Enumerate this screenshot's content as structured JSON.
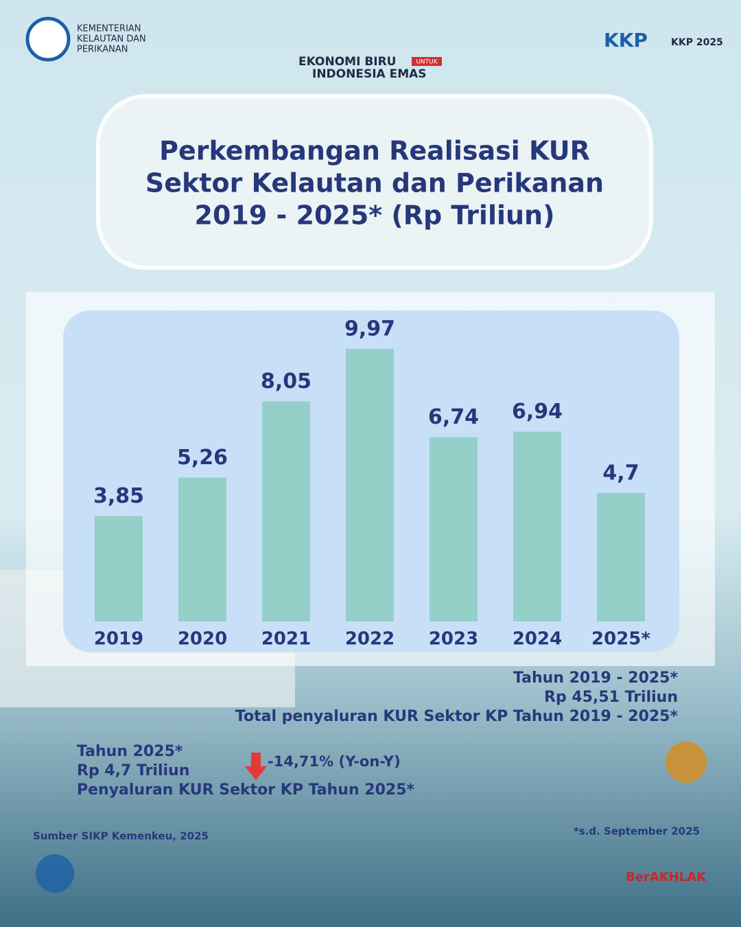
{
  "header": {
    "ministry": [
      "KEMENTERIAN",
      "KELAUTAN DAN",
      "PERIKANAN"
    ],
    "tagline_top": "EKONOMI BIRU",
    "tagline_small": "UNTUK",
    "tagline_bottom": "INDONESIA EMAS",
    "logo_right": "KKP",
    "logo_right2": "KKP 2025"
  },
  "chart_data": {
    "type": "bar",
    "title": [
      "Perkembangan Realisasi KUR",
      "Sektor Kelautan dan Perikanan",
      "2019 - 2025* (Rp Triliun)"
    ],
    "categories": [
      "2019",
      "2020",
      "2021",
      "2022",
      "2023",
      "2024",
      "2025*"
    ],
    "values": [
      3.85,
      5.26,
      8.05,
      9.97,
      6.74,
      6.94,
      4.7
    ],
    "value_labels": [
      "3,85",
      "5,26",
      "8,05",
      "9,97",
      "6,74",
      "6,94",
      "4,7"
    ],
    "color": "#94d0c8"
  },
  "summary_total": [
    "Tahun 2019 - 2025*",
    "Rp 45,51 Triliun",
    "Total penyaluran KUR Sektor KP Tahun 2019 - 2025*"
  ],
  "summary_2025": [
    "Tahun 2025*",
    "Rp 4,7 Triliun",
    "Penyaluran KUR Sektor KP Tahun 2025*"
  ],
  "yoy": "-14,71% (Y-on-Y)",
  "footer": {
    "source": "Sumber SIKP Kemenkeu, 2025",
    "note": "*s.d. September 2025",
    "brand": "BerAKHLAK"
  }
}
